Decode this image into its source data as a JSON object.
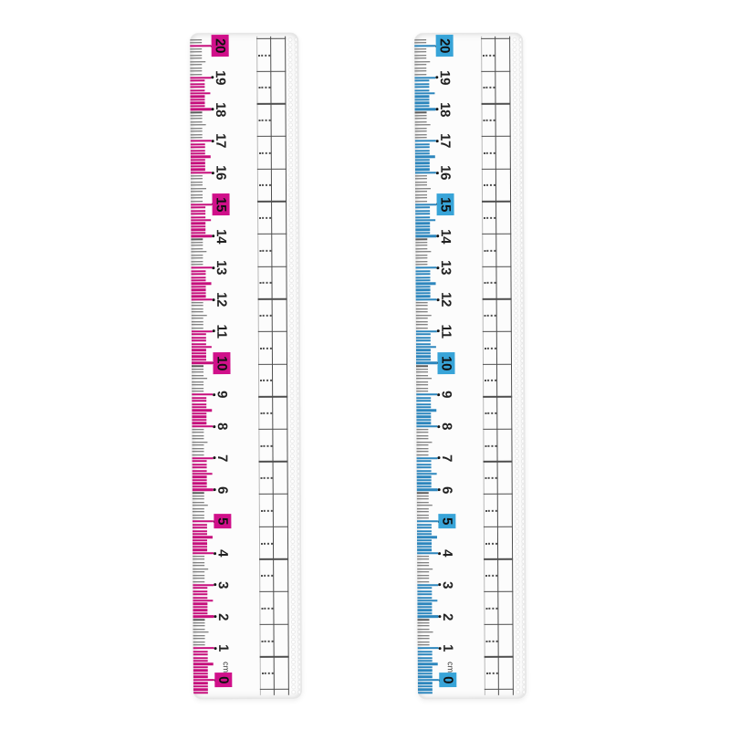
{
  "scene": {
    "background": "#ffffff"
  },
  "shared": {
    "number_color": "#222222",
    "highlight_text_color": "#101010",
    "gray_tick_color": "#5c5c5c",
    "grid_dark_color": "#4f4f4f",
    "grid_light_color": "#b8b8b8",
    "dot_color": "#161616",
    "unit_text_color": "#333333"
  },
  "rulers": [
    {
      "name": "pink-ruler",
      "accent": "#d0108a",
      "tick_color": "#c60e7c",
      "unit_label": "cm",
      "length_cm": 20,
      "numbers": [
        "0",
        "1",
        "2",
        "3",
        "4",
        "5",
        "6",
        "7",
        "8",
        "9",
        "10",
        "11",
        "12",
        "13",
        "14",
        "15",
        "16",
        "17",
        "18",
        "19",
        "20"
      ],
      "highlighted_numbers": [
        "0",
        "5",
        "10",
        "15",
        "20"
      ]
    },
    {
      "name": "blue-ruler",
      "accent": "#38a4d8",
      "tick_color": "#2c86bd",
      "unit_label": "cm",
      "length_cm": 20,
      "numbers": [
        "0",
        "1",
        "2",
        "3",
        "4",
        "5",
        "6",
        "7",
        "8",
        "9",
        "10",
        "11",
        "12",
        "13",
        "14",
        "15",
        "16",
        "17",
        "18",
        "19",
        "20"
      ],
      "highlighted_numbers": [
        "0",
        "5",
        "10",
        "15",
        "20"
      ]
    }
  ]
}
